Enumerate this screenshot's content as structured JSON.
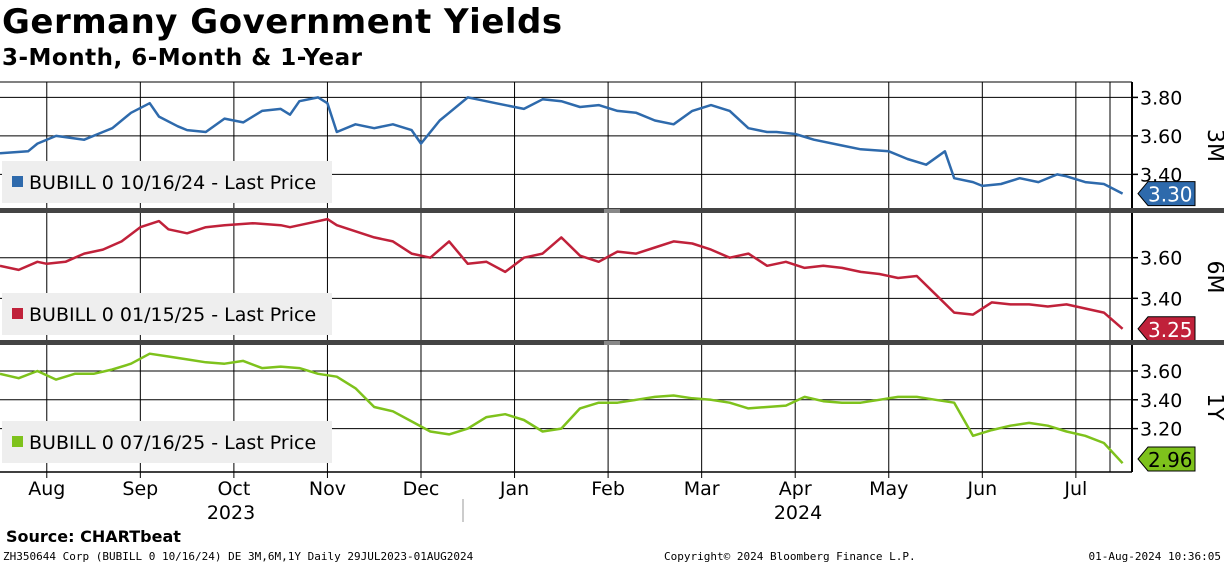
{
  "title": "Germany Government Yields",
  "subtitle": "3-Month, 6-Month & 1-Year",
  "source": "Source: CHARTbeat",
  "footer": {
    "left": "ZH350644 Corp (BUBILL 0 10/16/24) DE 3M,6M,1Y  Daily 29JUL2023-01AUG2024",
    "middle": "Copyright© 2024 Bloomberg Finance L.P.",
    "right": "01-Aug-2024 10:36:05"
  },
  "chart_data": {
    "type": "line",
    "x_tick_labels": [
      "Aug",
      "Sep",
      "Oct",
      "Nov",
      "Dec",
      "Jan",
      "Feb",
      "Mar",
      "Apr",
      "May",
      "Jun",
      "Jul"
    ],
    "year_labels": [
      "2023",
      "2024"
    ],
    "x_range": [
      0,
      12.1
    ],
    "panels": [
      {
        "name": "3M",
        "legend": "BUBILL 0 10/16/24 - Last Price",
        "color": "#2e6aac",
        "last_value": "3.30",
        "ylim": [
          3.22,
          3.88
        ],
        "yticks": [
          "3.40",
          "3.60",
          "3.80"
        ],
        "x": [
          0,
          0.3,
          0.4,
          0.6,
          0.9,
          1.1,
          1.2,
          1.4,
          1.6,
          1.7,
          1.9,
          2.0,
          2.2,
          2.4,
          2.6,
          2.8,
          3.0,
          3.1,
          3.2,
          3.4,
          3.5,
          3.6,
          3.8,
          4.0,
          4.2,
          4.4,
          4.5,
          4.7,
          4.8,
          5.0,
          5.1,
          5.3,
          5.6,
          5.8,
          6.0,
          6.2,
          6.4,
          6.6,
          6.8,
          7.0,
          7.2,
          7.4,
          7.6,
          7.8,
          8.0,
          8.2,
          8.3,
          8.5,
          8.7,
          9.0,
          9.2,
          9.5,
          9.7,
          9.9,
          10.1,
          10.2,
          10.4,
          10.5,
          10.7,
          10.9,
          11.1,
          11.3,
          11.4,
          11.6,
          11.8,
          12.0
        ],
        "values": [
          3.51,
          3.52,
          3.56,
          3.6,
          3.58,
          3.62,
          3.64,
          3.72,
          3.77,
          3.7,
          3.65,
          3.63,
          3.62,
          3.69,
          3.67,
          3.73,
          3.74,
          3.71,
          3.78,
          3.8,
          3.77,
          3.62,
          3.66,
          3.64,
          3.66,
          3.63,
          3.56,
          3.68,
          3.72,
          3.8,
          3.79,
          3.77,
          3.74,
          3.79,
          3.78,
          3.75,
          3.76,
          3.73,
          3.72,
          3.68,
          3.66,
          3.73,
          3.76,
          3.73,
          3.64,
          3.62,
          3.62,
          3.61,
          3.58,
          3.55,
          3.53,
          3.52,
          3.48,
          3.45,
          3.52,
          3.38,
          3.36,
          3.34,
          3.35,
          3.38,
          3.36,
          3.4,
          3.39,
          3.36,
          3.35,
          3.3
        ]
      },
      {
        "name": "6M",
        "legend": "BUBILL 0 01/15/25 - Last Price",
        "color": "#c0213a",
        "last_value": "3.25",
        "ylim": [
          3.19,
          3.82
        ],
        "yticks": [
          "3.40",
          "3.60"
        ],
        "x": [
          0,
          0.2,
          0.4,
          0.5,
          0.7,
          0.9,
          1.1,
          1.3,
          1.5,
          1.7,
          1.8,
          2.0,
          2.2,
          2.4,
          2.7,
          3.0,
          3.1,
          3.3,
          3.5,
          3.6,
          3.8,
          4.0,
          4.2,
          4.4,
          4.6,
          4.8,
          5.0,
          5.2,
          5.4,
          5.6,
          5.8,
          6.0,
          6.2,
          6.4,
          6.6,
          6.8,
          7.0,
          7.2,
          7.4,
          7.6,
          7.8,
          8.0,
          8.2,
          8.4,
          8.6,
          8.8,
          9.0,
          9.2,
          9.4,
          9.6,
          9.8,
          10.0,
          10.2,
          10.4,
          10.6,
          10.8,
          11.0,
          11.2,
          11.4,
          11.6,
          11.8,
          12.0
        ],
        "values": [
          3.56,
          3.54,
          3.58,
          3.57,
          3.58,
          3.62,
          3.64,
          3.68,
          3.75,
          3.78,
          3.74,
          3.72,
          3.75,
          3.76,
          3.77,
          3.76,
          3.75,
          3.77,
          3.79,
          3.76,
          3.73,
          3.7,
          3.68,
          3.62,
          3.6,
          3.68,
          3.57,
          3.58,
          3.53,
          3.6,
          3.62,
          3.7,
          3.61,
          3.58,
          3.63,
          3.62,
          3.65,
          3.68,
          3.67,
          3.64,
          3.6,
          3.62,
          3.56,
          3.58,
          3.55,
          3.56,
          3.55,
          3.53,
          3.52,
          3.5,
          3.51,
          3.42,
          3.33,
          3.32,
          3.38,
          3.37,
          3.37,
          3.36,
          3.37,
          3.35,
          3.33,
          3.25
        ]
      },
      {
        "name": "1Y",
        "legend": "BUBILL 0 07/16/25 - Last Price",
        "color": "#7ec21c",
        "last_value": "2.96",
        "ylim": [
          2.92,
          3.78
        ],
        "yticks": [
          "3.20",
          "3.40",
          "3.60"
        ],
        "x": [
          0,
          0.2,
          0.4,
          0.6,
          0.8,
          1.0,
          1.2,
          1.4,
          1.6,
          1.8,
          2.0,
          2.2,
          2.4,
          2.6,
          2.8,
          3.0,
          3.2,
          3.4,
          3.6,
          3.8,
          4.0,
          4.2,
          4.4,
          4.6,
          4.8,
          5.0,
          5.2,
          5.4,
          5.6,
          5.8,
          6.0,
          6.2,
          6.4,
          6.6,
          6.8,
          7.0,
          7.2,
          7.4,
          7.6,
          7.8,
          8.0,
          8.2,
          8.4,
          8.6,
          8.8,
          9.0,
          9.2,
          9.4,
          9.6,
          9.8,
          10.0,
          10.2,
          10.4,
          10.6,
          10.8,
          11.0,
          11.2,
          11.4,
          11.6,
          11.8,
          12.0
        ],
        "values": [
          3.58,
          3.55,
          3.6,
          3.54,
          3.58,
          3.58,
          3.61,
          3.65,
          3.72,
          3.7,
          3.68,
          3.66,
          3.65,
          3.67,
          3.62,
          3.63,
          3.62,
          3.58,
          3.56,
          3.48,
          3.35,
          3.32,
          3.25,
          3.18,
          3.16,
          3.2,
          3.28,
          3.3,
          3.26,
          3.18,
          3.2,
          3.34,
          3.38,
          3.38,
          3.4,
          3.42,
          3.43,
          3.41,
          3.4,
          3.38,
          3.34,
          3.35,
          3.36,
          3.42,
          3.39,
          3.38,
          3.38,
          3.4,
          3.42,
          3.42,
          3.4,
          3.38,
          3.15,
          3.19,
          3.22,
          3.24,
          3.22,
          3.18,
          3.15,
          3.1,
          2.96
        ]
      }
    ]
  }
}
